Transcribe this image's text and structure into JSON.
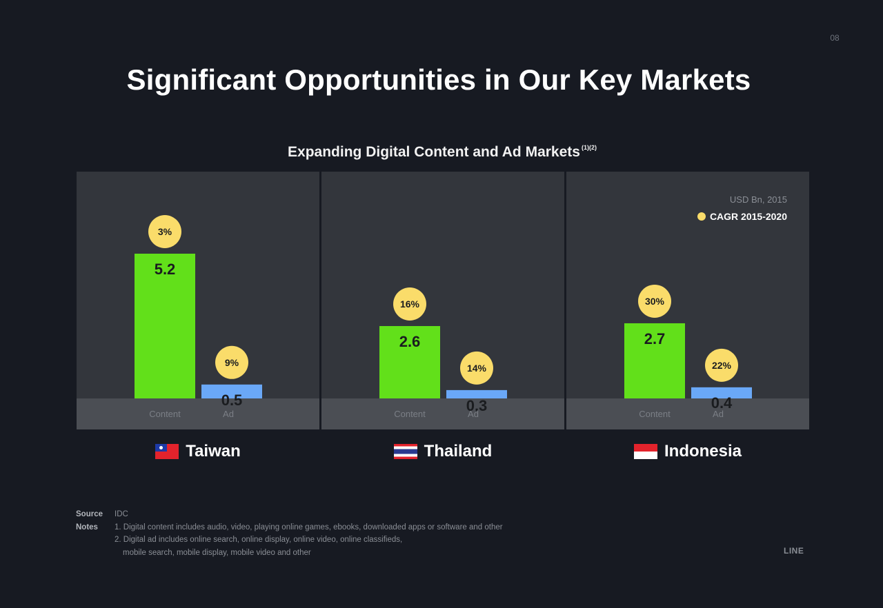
{
  "slide": {
    "page_number": "08",
    "title": "Significant Opportunities in Our Key Markets",
    "brand": "LINE"
  },
  "chart_data": {
    "type": "bar",
    "title": "Expanding Digital Content and Ad Markets",
    "title_superscript": "(1)(2)",
    "unit_label": "USD Bn, 2015",
    "legend": {
      "label": "CAGR 2015-2020",
      "color": "#fadc6a",
      "position": "top-right"
    },
    "categories": [
      "Content",
      "Ad"
    ],
    "colors": {
      "Content": "#62e01a",
      "Ad": "#6aa8f7"
    },
    "ylim": [
      0,
      5.2
    ],
    "panels": [
      {
        "country": "Taiwan",
        "flag_icon": "taiwan-flag-icon",
        "values": [
          5.2,
          0.5
        ],
        "value_labels": [
          "5.2",
          "0.5"
        ],
        "cagr": [
          "3%",
          "9%"
        ]
      },
      {
        "country": "Thailand",
        "flag_icon": "thailand-flag-icon",
        "values": [
          2.6,
          0.3
        ],
        "value_labels": [
          "2.6",
          "0.3"
        ],
        "cagr": [
          "16%",
          "14%"
        ]
      },
      {
        "country": "Indonesia",
        "flag_icon": "indonesia-flag-icon",
        "values": [
          2.7,
          0.4
        ],
        "value_labels": [
          "2.7",
          "0.4"
        ],
        "cagr": [
          "30%",
          "22%"
        ]
      }
    ]
  },
  "footnotes": {
    "source_label": "Source",
    "source_value": "IDC",
    "notes_label": "Notes",
    "notes": [
      "1. Digital content includes audio, video, playing online games, ebooks, downloaded apps or software and other",
      "2. Digital ad includes online search, online display, online video, online classifieds,",
      "mobile search, mobile display, mobile video and other"
    ]
  }
}
